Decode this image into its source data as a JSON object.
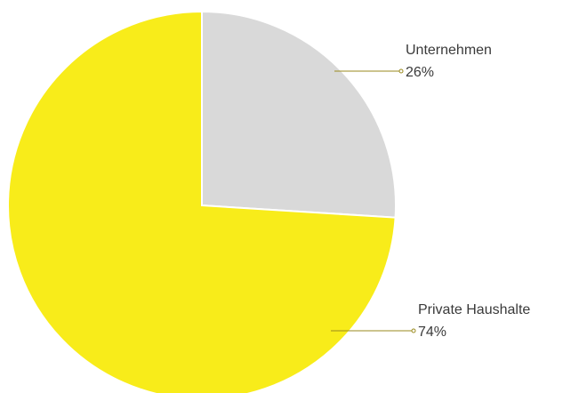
{
  "chart_data": {
    "type": "pie",
    "title": "",
    "unit": "%",
    "slices": [
      {
        "label": "Unternehmen",
        "value": 26,
        "value_label": "26%",
        "color": "#d9d9d9"
      },
      {
        "label": "Private Haushalte",
        "value": 74,
        "value_label": "74%",
        "color": "#f8ec1a"
      }
    ],
    "start_angle_deg": 0,
    "direction": "clockwise",
    "slice_border_color": "#ffffff",
    "leader_line_color": "#9a8a1e"
  }
}
